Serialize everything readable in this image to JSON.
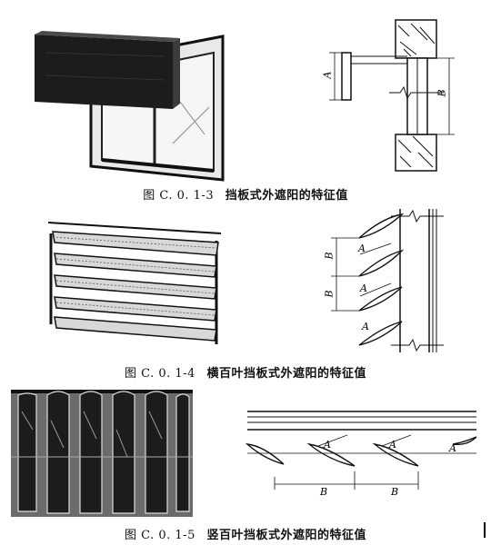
{
  "figures": [
    {
      "number": "图 C. 0. 1-3",
      "title": "挡板式外遮阳的特征值",
      "dimension_labels": [
        "A",
        "B"
      ]
    },
    {
      "number": "图 C. 0. 1-4",
      "title": "横百叶挡板式外遮阳的特征值",
      "dimension_labels": [
        "A",
        "B",
        "A",
        "B",
        "A"
      ]
    },
    {
      "number": "图 C. 0. 1-5",
      "title": "竖百叶挡板式外遮阳的特征值",
      "dimension_labels": [
        "A",
        "A",
        "A",
        "B",
        "B"
      ]
    }
  ],
  "colors": {
    "ink": "#111111",
    "photo_dark": "#1c1c1c",
    "photo_mid": "#6b6b6b",
    "paper": "#ffffff"
  }
}
